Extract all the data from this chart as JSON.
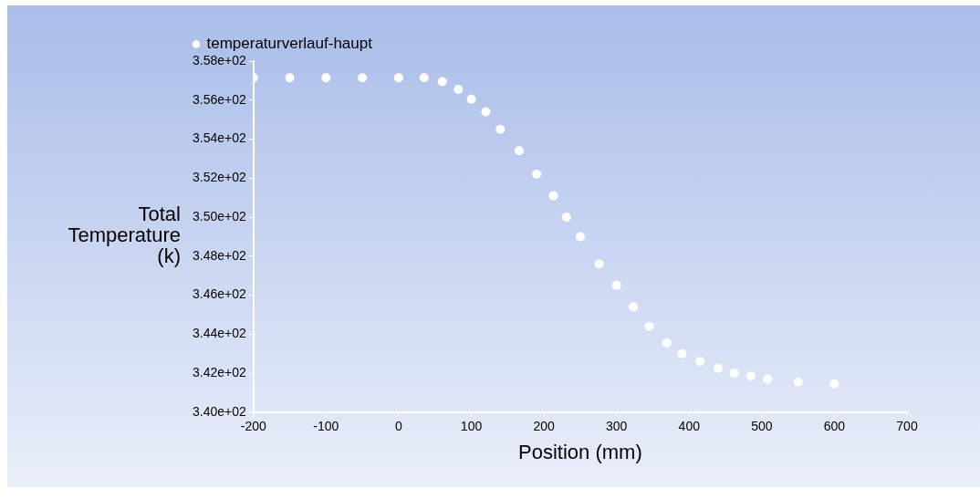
{
  "chart_data": {
    "type": "scatter",
    "xlabel": "Position (mm)",
    "ylabel": "Total Temperature (k)",
    "legend": "top left",
    "grid": false,
    "marker": "circle",
    "xlim": [
      -200,
      700
    ],
    "xticks": [
      -200,
      -100,
      0,
      100,
      200,
      300,
      400,
      500,
      600,
      700
    ],
    "ylim": [
      340,
      358
    ],
    "yticks": [
      {
        "value": 340,
        "label": "3.40e+02"
      },
      {
        "value": 342,
        "label": "3.42e+02"
      },
      {
        "value": 344,
        "label": "3.44e+02"
      },
      {
        "value": 346,
        "label": "3.46e+02"
      },
      {
        "value": 348,
        "label": "3.48e+02"
      },
      {
        "value": 350,
        "label": "3.50e+02"
      },
      {
        "value": 352,
        "label": "3.52e+02"
      },
      {
        "value": 354,
        "label": "3.54e+02"
      },
      {
        "value": 356,
        "label": "3.56e+02"
      },
      {
        "value": 358,
        "label": "3.58e+02"
      }
    ],
    "series": [
      {
        "name": "temperaturverlauf-haupt",
        "color": "#ffffff",
        "x": [
          -200,
          -150,
          -100,
          -50,
          0,
          35,
          60,
          82,
          100,
          120,
          140,
          166,
          190,
          213,
          231,
          250,
          276,
          300,
          323,
          345,
          369,
          390,
          415,
          440,
          462,
          485,
          508,
          550,
          600
        ],
        "values": [
          357.15,
          357.15,
          357.15,
          357.15,
          357.15,
          357.15,
          356.95,
          356.55,
          356.05,
          355.4,
          354.5,
          353.4,
          352.2,
          351.1,
          350.0,
          349.0,
          347.6,
          346.5,
          345.4,
          344.4,
          343.55,
          343.0,
          342.6,
          342.25,
          342.0,
          341.85,
          341.7,
          341.55,
          341.45
        ]
      }
    ]
  }
}
